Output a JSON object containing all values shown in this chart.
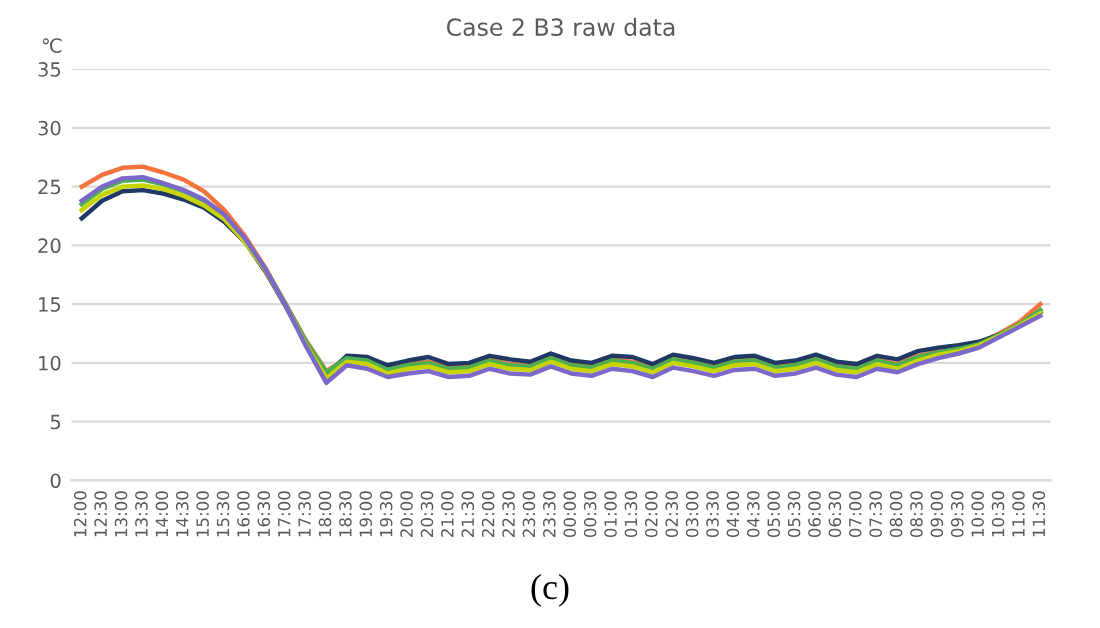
{
  "chart_data": {
    "type": "line",
    "title": "Case 2 B3 raw data",
    "ylabel": "℃",
    "categories": [
      "12:00",
      "12:30",
      "13:00",
      "13:30",
      "14:00",
      "14:30",
      "15:00",
      "15:30",
      "16:00",
      "16:30",
      "17:00",
      "17:30",
      "18:00",
      "18:30",
      "19:00",
      "19:30",
      "20:00",
      "20:30",
      "21:00",
      "21:30",
      "22:00",
      "22:30",
      "23:00",
      "23:30",
      "00:00",
      "00:30",
      "01:00",
      "01:30",
      "02:00",
      "02:30",
      "03:00",
      "03:30",
      "04:00",
      "04:30",
      "05:00",
      "05:30",
      "06:00",
      "06:30",
      "07:00",
      "07:30",
      "08:00",
      "08:30",
      "09:00",
      "09:30",
      "10:00",
      "10:30",
      "11:00",
      "11:30"
    ],
    "series": [
      {
        "color": "#f4733c",
        "values": [
          25.0,
          26.0,
          26.6,
          26.7,
          26.2,
          25.6,
          24.6,
          23.0,
          20.8,
          18.1,
          15.0,
          11.9,
          9.3,
          10.4,
          10.2,
          9.5,
          9.9,
          10.1,
          9.6,
          9.7,
          10.3,
          9.9,
          9.8,
          10.5,
          9.9,
          9.7,
          10.3,
          10.1,
          9.6,
          10.4,
          10.1,
          9.7,
          10.2,
          10.3,
          9.7,
          9.9,
          10.4,
          9.8,
          9.6,
          10.3,
          9.9,
          10.6,
          11.0,
          11.3,
          11.7,
          12.5,
          13.5,
          15.0
        ]
      },
      {
        "color": "#1f3864",
        "values": [
          22.3,
          23.8,
          24.6,
          24.7,
          24.4,
          23.9,
          23.2,
          22.0,
          20.3,
          17.8,
          14.8,
          11.6,
          9.0,
          10.6,
          10.5,
          9.8,
          10.2,
          10.5,
          9.9,
          10.0,
          10.6,
          10.3,
          10.1,
          10.8,
          10.2,
          10.0,
          10.6,
          10.5,
          9.9,
          10.7,
          10.4,
          10.0,
          10.5,
          10.6,
          10.0,
          10.2,
          10.7,
          10.1,
          9.9,
          10.6,
          10.3,
          11.0,
          11.3,
          11.5,
          11.8,
          12.4,
          13.2,
          14.3
        ]
      },
      {
        "color": "#4caf50",
        "values": [
          23.5,
          24.8,
          25.5,
          25.6,
          25.2,
          24.6,
          23.8,
          22.5,
          20.5,
          18.0,
          15.0,
          11.8,
          9.2,
          10.4,
          10.2,
          9.4,
          9.8,
          10.0,
          9.5,
          9.6,
          10.2,
          9.8,
          9.7,
          10.4,
          9.8,
          9.6,
          10.2,
          10.0,
          9.5,
          10.3,
          10.0,
          9.6,
          10.1,
          10.2,
          9.6,
          9.8,
          10.3,
          9.7,
          9.5,
          10.2,
          9.8,
          10.5,
          10.9,
          11.2,
          11.6,
          12.4,
          13.3,
          14.5
        ]
      },
      {
        "color": "#c8d400",
        "values": [
          23.0,
          24.3,
          25.0,
          25.1,
          24.8,
          24.2,
          23.4,
          22.2,
          20.3,
          17.9,
          14.9,
          11.5,
          8.7,
          10.1,
          9.9,
          9.1,
          9.5,
          9.7,
          9.2,
          9.3,
          9.9,
          9.5,
          9.4,
          10.1,
          9.5,
          9.3,
          9.9,
          9.7,
          9.2,
          10.0,
          9.7,
          9.3,
          9.8,
          9.9,
          9.3,
          9.5,
          10.0,
          9.4,
          9.2,
          9.9,
          9.5,
          10.2,
          10.7,
          11.0,
          11.5,
          12.3,
          13.2,
          14.2
        ]
      },
      {
        "color": "#7b68c8",
        "values": [
          23.8,
          25.0,
          25.7,
          25.8,
          25.3,
          24.7,
          23.9,
          22.6,
          20.6,
          18.0,
          14.9,
          11.4,
          8.3,
          9.8,
          9.5,
          8.8,
          9.1,
          9.3,
          8.8,
          8.9,
          9.5,
          9.1,
          9.0,
          9.7,
          9.1,
          8.9,
          9.5,
          9.3,
          8.8,
          9.6,
          9.3,
          8.9,
          9.4,
          9.5,
          8.9,
          9.1,
          9.6,
          9.0,
          8.8,
          9.5,
          9.2,
          9.9,
          10.4,
          10.8,
          11.3,
          12.2,
          13.1,
          14.0
        ]
      }
    ],
    "ylim": [
      0,
      35
    ],
    "yticks": [
      0,
      5,
      10,
      15,
      20,
      25,
      30,
      35
    ],
    "grid": "y",
    "legend": false,
    "marker": "none",
    "line_style": "solid",
    "annotations": [
      "(c)"
    ]
  }
}
